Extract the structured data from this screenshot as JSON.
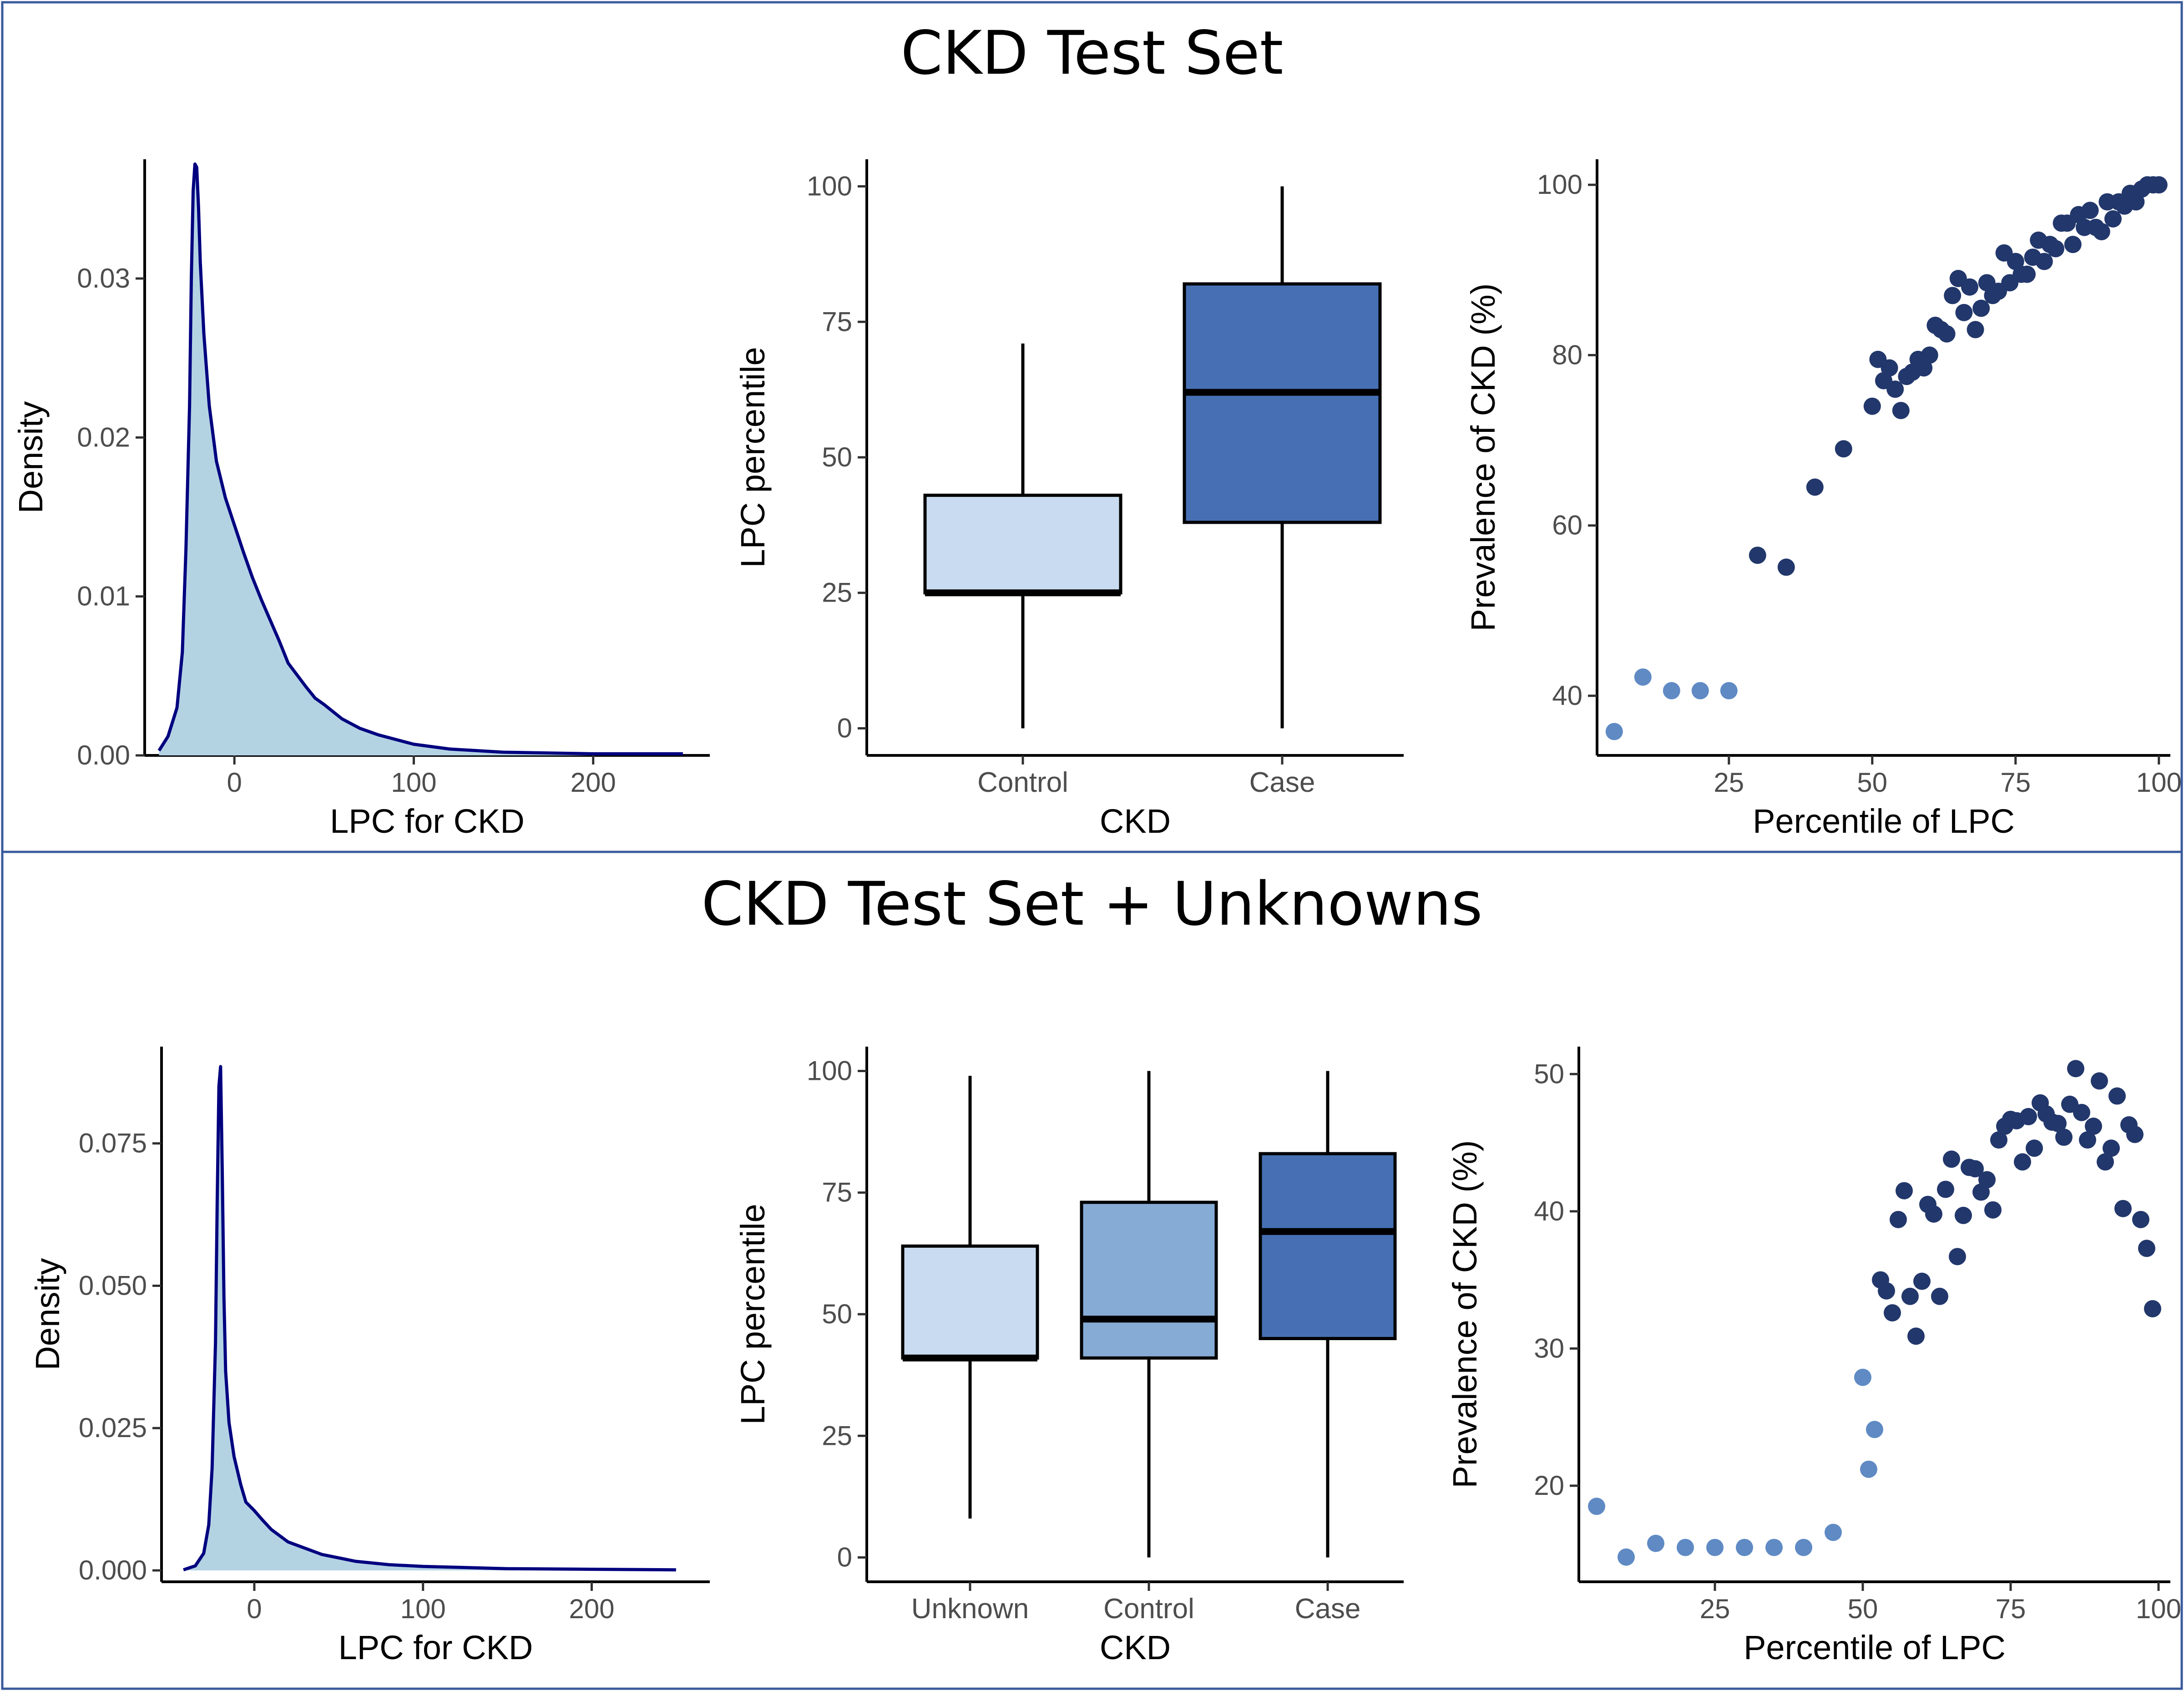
{
  "panels": [
    {
      "title": "CKD Test Set"
    },
    {
      "title": "CKD Test Set + Unknowns"
    }
  ],
  "colors": {
    "frame": "#3a5a9c",
    "density_line": "#00007f",
    "density_fill": "#b3d3e3",
    "box_light": "#c9dbf0",
    "box_mid": "#86acd6",
    "box_dark": "#4670b3",
    "point_light": "#5f8ac4",
    "point_dark": "#22376b"
  },
  "chart_data": [
    {
      "type": "area",
      "panel": 0,
      "xlabel": "LPC for CKD",
      "ylabel": "Density",
      "xlim": [
        -50,
        265
      ],
      "ylim": [
        0,
        0.0375
      ],
      "xticks": [
        0,
        100,
        200
      ],
      "yticks": [
        0.0,
        0.01,
        0.02,
        0.03
      ],
      "ytick_labels": [
        "0.00",
        "0.01",
        "0.02",
        "0.03"
      ],
      "x": [
        -42,
        -37,
        -32,
        -29,
        -27,
        -25,
        -24,
        -23,
        -22,
        -21,
        -20,
        -19,
        -17,
        -14,
        -10,
        -5,
        0,
        5,
        10,
        15,
        20,
        25,
        30,
        40,
        45,
        50,
        60,
        70,
        80,
        100,
        120,
        150,
        200,
        250
      ],
      "y": [
        0.0003,
        0.0012,
        0.003,
        0.0065,
        0.013,
        0.022,
        0.03,
        0.0355,
        0.0372,
        0.037,
        0.0345,
        0.031,
        0.0265,
        0.022,
        0.0185,
        0.0162,
        0.0145,
        0.0128,
        0.0112,
        0.0098,
        0.0085,
        0.0072,
        0.0058,
        0.0043,
        0.0036,
        0.0032,
        0.0023,
        0.0017,
        0.0013,
        0.0007,
        0.0004,
        0.0002,
        0.0001,
        0.0001
      ]
    },
    {
      "type": "box",
      "panel": 0,
      "xlabel": "CKD",
      "ylabel": "LPC percentile",
      "ylim": [
        -5,
        105
      ],
      "yticks": [
        0,
        25,
        50,
        75,
        100
      ],
      "categories": [
        "Control",
        "Case"
      ],
      "boxes": [
        {
          "min": 0,
          "q1": 25,
          "median": 25,
          "q3": 43,
          "max": 71,
          "fill": "light"
        },
        {
          "min": 0,
          "q1": 38,
          "median": 62,
          "q3": 82,
          "max": 100,
          "fill": "dark"
        }
      ]
    },
    {
      "type": "scatter",
      "panel": 0,
      "xlabel": "Percentile of LPC",
      "ylabel": "Prevalence of CKD (%)",
      "xlim": [
        2,
        102
      ],
      "ylim": [
        33,
        103
      ],
      "xticks": [
        25,
        50,
        75,
        100
      ],
      "yticks": [
        40,
        60,
        80,
        100
      ],
      "points_light": [
        [
          5,
          35.8
        ],
        [
          10,
          42.2
        ],
        [
          15,
          40.6
        ],
        [
          20,
          40.6
        ],
        [
          25,
          40.6
        ]
      ],
      "points_dark": [
        [
          30,
          56.5
        ],
        [
          35,
          55.1
        ],
        [
          40,
          64.5
        ],
        [
          45,
          69
        ],
        [
          50,
          74
        ],
        [
          51,
          79.5
        ],
        [
          52,
          77
        ],
        [
          53,
          78.5
        ],
        [
          54,
          76
        ],
        [
          55,
          73.5
        ],
        [
          56,
          77.5
        ],
        [
          57,
          78
        ],
        [
          58,
          79.5
        ],
        [
          59,
          78.5
        ],
        [
          60,
          80
        ],
        [
          61,
          83.5
        ],
        [
          62,
          83
        ],
        [
          63,
          82.5
        ],
        [
          64,
          87
        ],
        [
          65,
          89
        ],
        [
          66,
          85
        ],
        [
          67,
          88
        ],
        [
          68,
          83
        ],
        [
          69,
          85.5
        ],
        [
          70,
          88.5
        ],
        [
          71,
          87
        ],
        [
          72,
          87.5
        ],
        [
          73,
          92
        ],
        [
          74,
          88.5
        ],
        [
          75,
          91
        ],
        [
          76,
          89.5
        ],
        [
          77,
          89.5
        ],
        [
          78,
          91.5
        ],
        [
          79,
          93.5
        ],
        [
          80,
          91
        ],
        [
          81,
          93
        ],
        [
          82,
          92.5
        ],
        [
          83,
          95.5
        ],
        [
          84,
          95.5
        ],
        [
          85,
          93
        ],
        [
          86,
          96.5
        ],
        [
          87,
          95
        ],
        [
          88,
          97
        ],
        [
          89,
          95
        ],
        [
          90,
          94.5
        ],
        [
          91,
          98
        ],
        [
          92,
          96
        ],
        [
          93,
          98
        ],
        [
          94,
          97.5
        ],
        [
          95,
          99
        ],
        [
          96,
          98
        ],
        [
          97,
          99.5
        ],
        [
          98,
          100
        ],
        [
          99,
          100
        ],
        [
          100,
          100
        ]
      ]
    },
    {
      "type": "area",
      "panel": 1,
      "xlabel": "LPC for CKD",
      "ylabel": "Density",
      "xlim": [
        -55,
        270
      ],
      "ylim": [
        -0.002,
        0.092
      ],
      "xticks": [
        0,
        100,
        200
      ],
      "yticks": [
        0.0,
        0.025,
        0.05,
        0.075
      ],
      "ytick_labels": [
        "0.000",
        "0.025",
        "0.050",
        "0.075"
      ],
      "x": [
        -42,
        -35,
        -30,
        -27,
        -25,
        -23,
        -22,
        -21,
        -20,
        -19,
        -18,
        -17,
        -15,
        -12,
        -8,
        -5,
        0,
        5,
        10,
        20,
        40,
        60,
        80,
        100,
        150,
        200,
        250
      ],
      "y": [
        0.0001,
        0.0008,
        0.003,
        0.008,
        0.018,
        0.04,
        0.065,
        0.085,
        0.0885,
        0.07,
        0.048,
        0.035,
        0.026,
        0.02,
        0.015,
        0.012,
        0.0105,
        0.0088,
        0.0072,
        0.005,
        0.0028,
        0.0016,
        0.001,
        0.0007,
        0.0003,
        0.0002,
        0.0001
      ]
    },
    {
      "type": "box",
      "panel": 1,
      "xlabel": "CKD",
      "ylabel": "LPC percentile",
      "ylim": [
        -5,
        105
      ],
      "yticks": [
        0,
        25,
        50,
        75,
        100
      ],
      "categories": [
        "Unknown",
        "Control",
        "Case"
      ],
      "boxes": [
        {
          "min": 8,
          "q1": 41,
          "median": 41,
          "q3": 64,
          "max": 99,
          "fill": "light"
        },
        {
          "min": 0,
          "q1": 41,
          "median": 49,
          "q3": 73,
          "max": 100,
          "fill": "mid"
        },
        {
          "min": 0,
          "q1": 45,
          "median": 67,
          "q3": 83,
          "max": 100,
          "fill": "dark"
        }
      ]
    },
    {
      "type": "scatter",
      "panel": 1,
      "xlabel": "Percentile of LPC",
      "ylabel": "Prevalence of CKD (%)",
      "xlim": [
        2,
        102
      ],
      "ylim": [
        13,
        52
      ],
      "xticks": [
        25,
        50,
        75,
        100
      ],
      "yticks": [
        20,
        30,
        40,
        50
      ],
      "points_light": [
        [
          5,
          18.5
        ],
        [
          10,
          14.8
        ],
        [
          15,
          15.8
        ],
        [
          20,
          15.5
        ],
        [
          25,
          15.5
        ],
        [
          30,
          15.5
        ],
        [
          35,
          15.5
        ],
        [
          40,
          15.5
        ],
        [
          45,
          16.6
        ],
        [
          50,
          27.9
        ],
        [
          51,
          21.2
        ],
        [
          52,
          24.1
        ]
      ],
      "points_dark": [
        [
          53,
          35
        ],
        [
          54,
          34.2
        ],
        [
          55,
          32.6
        ],
        [
          56,
          39.4
        ],
        [
          57,
          41.5
        ],
        [
          58,
          33.8
        ],
        [
          59,
          30.9
        ],
        [
          60,
          34.9
        ],
        [
          61,
          40.5
        ],
        [
          62,
          39.8
        ],
        [
          63,
          33.8
        ],
        [
          64,
          41.6
        ],
        [
          65,
          43.8
        ],
        [
          66,
          36.7
        ],
        [
          67,
          39.7
        ],
        [
          68,
          43.2
        ],
        [
          69,
          43.1
        ],
        [
          70,
          41.4
        ],
        [
          71,
          42.3
        ],
        [
          72,
          40.1
        ],
        [
          73,
          45.2
        ],
        [
          74,
          46.2
        ],
        [
          75,
          46.7
        ],
        [
          76,
          46.6
        ],
        [
          77,
          43.6
        ],
        [
          78,
          46.9
        ],
        [
          79,
          44.6
        ],
        [
          80,
          47.9
        ],
        [
          81,
          47.1
        ],
        [
          82,
          46.5
        ],
        [
          83,
          46.4
        ],
        [
          84,
          45.4
        ],
        [
          85,
          47.8
        ],
        [
          86,
          50.4
        ],
        [
          87,
          47.2
        ],
        [
          88,
          45.2
        ],
        [
          89,
          46.2
        ],
        [
          90,
          49.5
        ],
        [
          91,
          43.6
        ],
        [
          92,
          44.6
        ],
        [
          93,
          48.4
        ],
        [
          94,
          40.2
        ],
        [
          95,
          46.3
        ],
        [
          96,
          45.6
        ],
        [
          97,
          39.4
        ],
        [
          98,
          37.3
        ],
        [
          99,
          32.9
        ]
      ]
    }
  ]
}
